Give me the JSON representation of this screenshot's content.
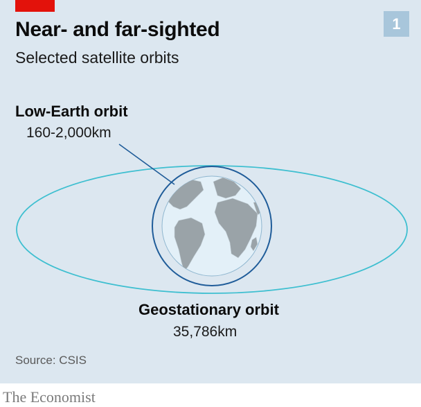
{
  "header": {
    "title": "Near- and far-sighted",
    "subtitle": "Selected satellite orbits",
    "badge": "1"
  },
  "diagram": {
    "low_earth_orbit": {
      "label": "Low-Earth orbit",
      "range": "160-2,000km"
    },
    "geostationary_orbit": {
      "label": "Geostationary orbit",
      "range": "35,786km"
    }
  },
  "footer": {
    "source": "Source: CSIS",
    "brand": "The Economist"
  },
  "colors": {
    "background": "#dce7f0",
    "accent_red": "#e3120b",
    "badge": "#a8c6db",
    "leo_orbit": "#1f5c99",
    "geo_orbit": "#3ebfd0",
    "ocean": "#e3f0f8",
    "land": "#9aa3a8"
  },
  "icons": [
    "earth-globe-icon"
  ]
}
